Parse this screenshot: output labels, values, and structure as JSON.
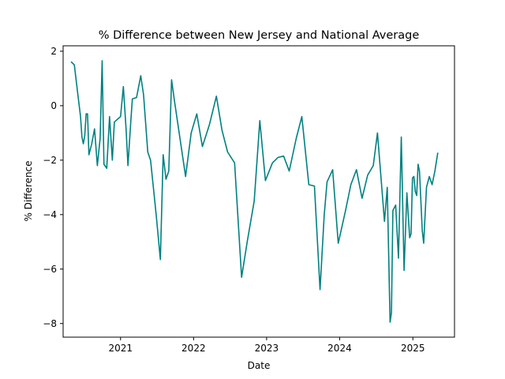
{
  "chart_data": {
    "type": "line",
    "title": "% Difference between New Jersey and National Average",
    "xlabel": "Date",
    "ylabel": "% Difference",
    "x_ticks": [
      "2021",
      "2022",
      "2023",
      "2024",
      "2025"
    ],
    "y_ticks": [
      2,
      0,
      -2,
      -4,
      -6,
      -8
    ],
    "xlim": [
      "2020-03-20",
      "2025-07-28"
    ],
    "ylim": [
      -8.5,
      2.2
    ],
    "grid": false,
    "line_color": "#008080",
    "series": [
      {
        "points": [
          [
            "2020-05-01",
            1.6
          ],
          [
            "2020-05-15",
            1.5
          ],
          [
            "2020-06-01",
            0.45
          ],
          [
            "2020-06-15",
            -0.4
          ],
          [
            "2020-06-22",
            -1.15
          ],
          [
            "2020-06-29",
            -1.4
          ],
          [
            "2020-07-06",
            -1.1
          ],
          [
            "2020-07-13",
            -0.3
          ],
          [
            "2020-07-20",
            -0.3
          ],
          [
            "2020-07-27",
            -1.8
          ],
          [
            "2020-08-10",
            -1.4
          ],
          [
            "2020-08-24",
            -0.85
          ],
          [
            "2020-09-07",
            -2.2
          ],
          [
            "2020-09-21",
            -1.2
          ],
          [
            "2020-10-01",
            1.65
          ],
          [
            "2020-10-10",
            -2.15
          ],
          [
            "2020-10-24",
            -2.3
          ],
          [
            "2020-11-07",
            -0.4
          ],
          [
            "2020-11-21",
            -2.0
          ],
          [
            "2020-12-01",
            -0.6
          ],
          [
            "2021-01-01",
            -0.4
          ],
          [
            "2021-01-15",
            0.7
          ],
          [
            "2021-01-29",
            -0.9
          ],
          [
            "2021-02-07",
            -2.2
          ],
          [
            "2021-02-21",
            -0.6
          ],
          [
            "2021-03-01",
            0.25
          ],
          [
            "2021-03-22",
            0.3
          ],
          [
            "2021-04-12",
            1.1
          ],
          [
            "2021-04-26",
            0.4
          ],
          [
            "2021-05-17",
            -1.7
          ],
          [
            "2021-05-31",
            -2.0
          ],
          [
            "2021-06-28",
            -4.0
          ],
          [
            "2021-07-19",
            -5.65
          ],
          [
            "2021-08-02",
            -1.8
          ],
          [
            "2021-08-16",
            -2.7
          ],
          [
            "2021-08-30",
            -2.4
          ],
          [
            "2021-09-13",
            0.95
          ],
          [
            "2021-09-27",
            0.2
          ],
          [
            "2021-10-25",
            -1.2
          ],
          [
            "2021-11-22",
            -2.6
          ],
          [
            "2021-12-20",
            -1.0
          ],
          [
            "2022-01-17",
            -0.3
          ],
          [
            "2022-02-14",
            -1.5
          ],
          [
            "2022-03-21",
            -0.7
          ],
          [
            "2022-04-25",
            0.35
          ],
          [
            "2022-05-23",
            -0.9
          ],
          [
            "2022-06-20",
            -1.7
          ],
          [
            "2022-07-25",
            -2.1
          ],
          [
            "2022-08-29",
            -6.3
          ],
          [
            "2022-09-26",
            -5.0
          ],
          [
            "2022-10-31",
            -3.5
          ],
          [
            "2022-11-28",
            -0.55
          ],
          [
            "2022-12-26",
            -2.75
          ],
          [
            "2023-01-30",
            -2.1
          ],
          [
            "2023-02-27",
            -1.9
          ],
          [
            "2023-03-27",
            -1.85
          ],
          [
            "2023-04-24",
            -2.4
          ],
          [
            "2023-05-29",
            -1.2
          ],
          [
            "2023-06-26",
            -0.4
          ],
          [
            "2023-07-31",
            -2.9
          ],
          [
            "2023-08-28",
            -2.95
          ],
          [
            "2023-09-25",
            -6.75
          ],
          [
            "2023-10-16",
            -4.0
          ],
          [
            "2023-10-30",
            -2.8
          ],
          [
            "2023-11-27",
            -2.35
          ],
          [
            "2023-12-25",
            -5.05
          ],
          [
            "2024-01-29",
            -3.9
          ],
          [
            "2024-02-26",
            -2.9
          ],
          [
            "2024-03-25",
            -2.35
          ],
          [
            "2024-04-22",
            -3.4
          ],
          [
            "2024-05-20",
            -2.55
          ],
          [
            "2024-06-17",
            -2.2
          ],
          [
            "2024-07-08",
            -1.0
          ],
          [
            "2024-07-22",
            -2.3
          ],
          [
            "2024-08-12",
            -4.25
          ],
          [
            "2024-08-26",
            -3.0
          ],
          [
            "2024-09-09",
            -7.95
          ],
          [
            "2024-09-16",
            -7.6
          ],
          [
            "2024-09-23",
            -3.85
          ],
          [
            "2024-10-07",
            -3.65
          ],
          [
            "2024-10-21",
            -5.6
          ],
          [
            "2024-11-04",
            -1.15
          ],
          [
            "2024-11-18",
            -6.05
          ],
          [
            "2024-12-02",
            -3.2
          ],
          [
            "2024-12-16",
            -4.85
          ],
          [
            "2024-12-23",
            -4.7
          ],
          [
            "2024-12-30",
            -2.65
          ],
          [
            "2025-01-06",
            -2.6
          ],
          [
            "2025-01-13",
            -3.15
          ],
          [
            "2025-01-20",
            -3.3
          ],
          [
            "2025-01-27",
            -2.15
          ],
          [
            "2025-02-03",
            -2.4
          ],
          [
            "2025-02-17",
            -4.6
          ],
          [
            "2025-02-24",
            -5.05
          ],
          [
            "2025-03-10",
            -3.0
          ],
          [
            "2025-03-24",
            -2.6
          ],
          [
            "2025-04-07",
            -2.9
          ],
          [
            "2025-04-21",
            -2.4
          ],
          [
            "2025-05-05",
            -1.75
          ]
        ]
      }
    ]
  }
}
